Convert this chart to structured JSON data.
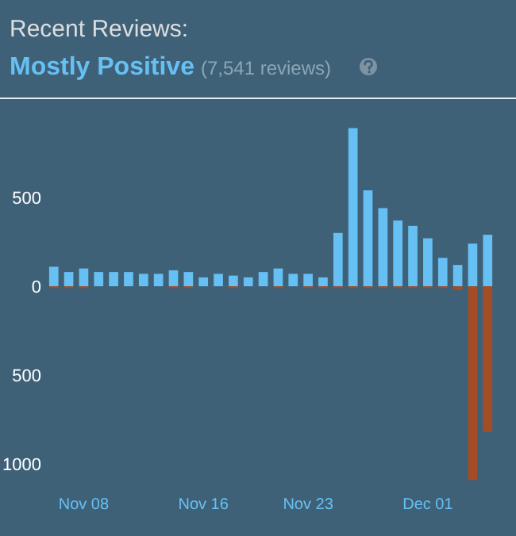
{
  "chart_data": {
    "type": "bar",
    "title": "Recent Reviews:",
    "subtitle": "Mostly Positive",
    "annotations": [
      "(7,541 reviews)"
    ],
    "categories": [
      null,
      null,
      "Nov 08",
      null,
      null,
      null,
      null,
      null,
      null,
      null,
      "Nov 16",
      null,
      null,
      null,
      null,
      null,
      null,
      "Nov 23",
      null,
      null,
      null,
      null,
      null,
      null,
      null,
      "Dec 01",
      null,
      null,
      null,
      null
    ],
    "series": [
      {
        "color": "#66c0f4",
        "values": [
          110,
          80,
          100,
          80,
          80,
          80,
          70,
          70,
          90,
          80,
          50,
          70,
          60,
          50,
          80,
          100,
          70,
          70,
          50,
          300,
          890,
          540,
          440,
          370,
          340,
          270,
          160,
          120,
          240,
          290
        ]
      },
      {
        "color": "#a34c25",
        "values": [
          -10,
          -10,
          -10,
          0,
          0,
          0,
          0,
          0,
          -10,
          -10,
          0,
          0,
          -10,
          0,
          0,
          -10,
          0,
          -10,
          -10,
          -10,
          -10,
          -10,
          -10,
          -10,
          -10,
          -10,
          -10,
          -20,
          -1090,
          -820
        ]
      }
    ],
    "ylim": [
      -1120,
      1040
    ],
    "yticks": [
      {
        "value": -1000,
        "label": "1000"
      },
      {
        "value": -500,
        "label": "500"
      },
      0,
      500
    ],
    "grid": false
  }
}
